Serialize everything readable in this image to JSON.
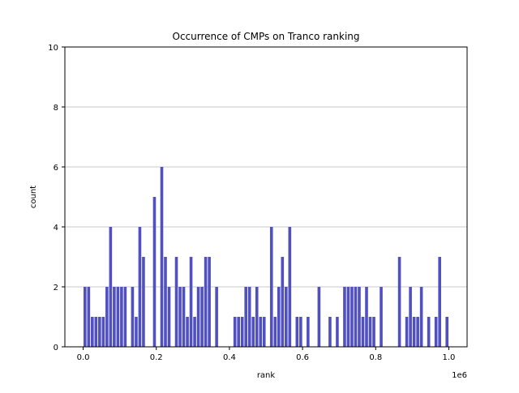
{
  "chart_data": {
    "type": "bar",
    "title": "Occurrence of CMPs on Tranco ranking",
    "xlabel": "rank",
    "ylabel": "count",
    "x_offset_label": "1e6",
    "xlim": [
      -50000,
      1050000
    ],
    "ylim": [
      0,
      10
    ],
    "xticks": [
      0,
      0.2,
      0.4,
      0.6,
      0.8,
      1.0
    ],
    "xtick_labels": [
      "0.0",
      "0.2",
      "0.4",
      "0.6",
      "0.8",
      "1.0"
    ],
    "yticks": [
      0,
      2,
      4,
      6,
      8,
      10
    ],
    "grid": "y",
    "bar_color": "#5050c0",
    "bin_width": 8000,
    "x": [
      5000,
      15000,
      25000,
      35000,
      45000,
      55000,
      65000,
      75000,
      85000,
      95000,
      105000,
      115000,
      135000,
      145000,
      155000,
      165000,
      195000,
      215000,
      225000,
      235000,
      255000,
      265000,
      275000,
      285000,
      295000,
      305000,
      315000,
      325000,
      335000,
      345000,
      365000,
      415000,
      425000,
      435000,
      445000,
      455000,
      465000,
      475000,
      485000,
      495000,
      515000,
      525000,
      535000,
      545000,
      555000,
      565000,
      585000,
      595000,
      615000,
      645000,
      675000,
      695000,
      715000,
      725000,
      735000,
      745000,
      755000,
      765000,
      775000,
      785000,
      795000,
      815000,
      865000,
      885000,
      895000,
      905000,
      915000,
      925000,
      945000,
      965000,
      975000,
      995000
    ],
    "values": [
      2,
      2,
      1,
      1,
      1,
      1,
      2,
      4,
      2,
      2,
      2,
      2,
      2,
      1,
      4,
      3,
      5,
      6,
      3,
      2,
      3,
      2,
      2,
      1,
      3,
      1,
      2,
      2,
      3,
      3,
      2,
      1,
      1,
      1,
      2,
      2,
      1,
      2,
      1,
      1,
      4,
      1,
      2,
      3,
      2,
      4,
      1,
      1,
      1,
      2,
      1,
      1,
      2,
      2,
      2,
      2,
      2,
      1,
      2,
      1,
      1,
      2,
      3,
      1,
      2,
      1,
      1,
      2,
      1,
      1,
      3,
      1
    ]
  }
}
